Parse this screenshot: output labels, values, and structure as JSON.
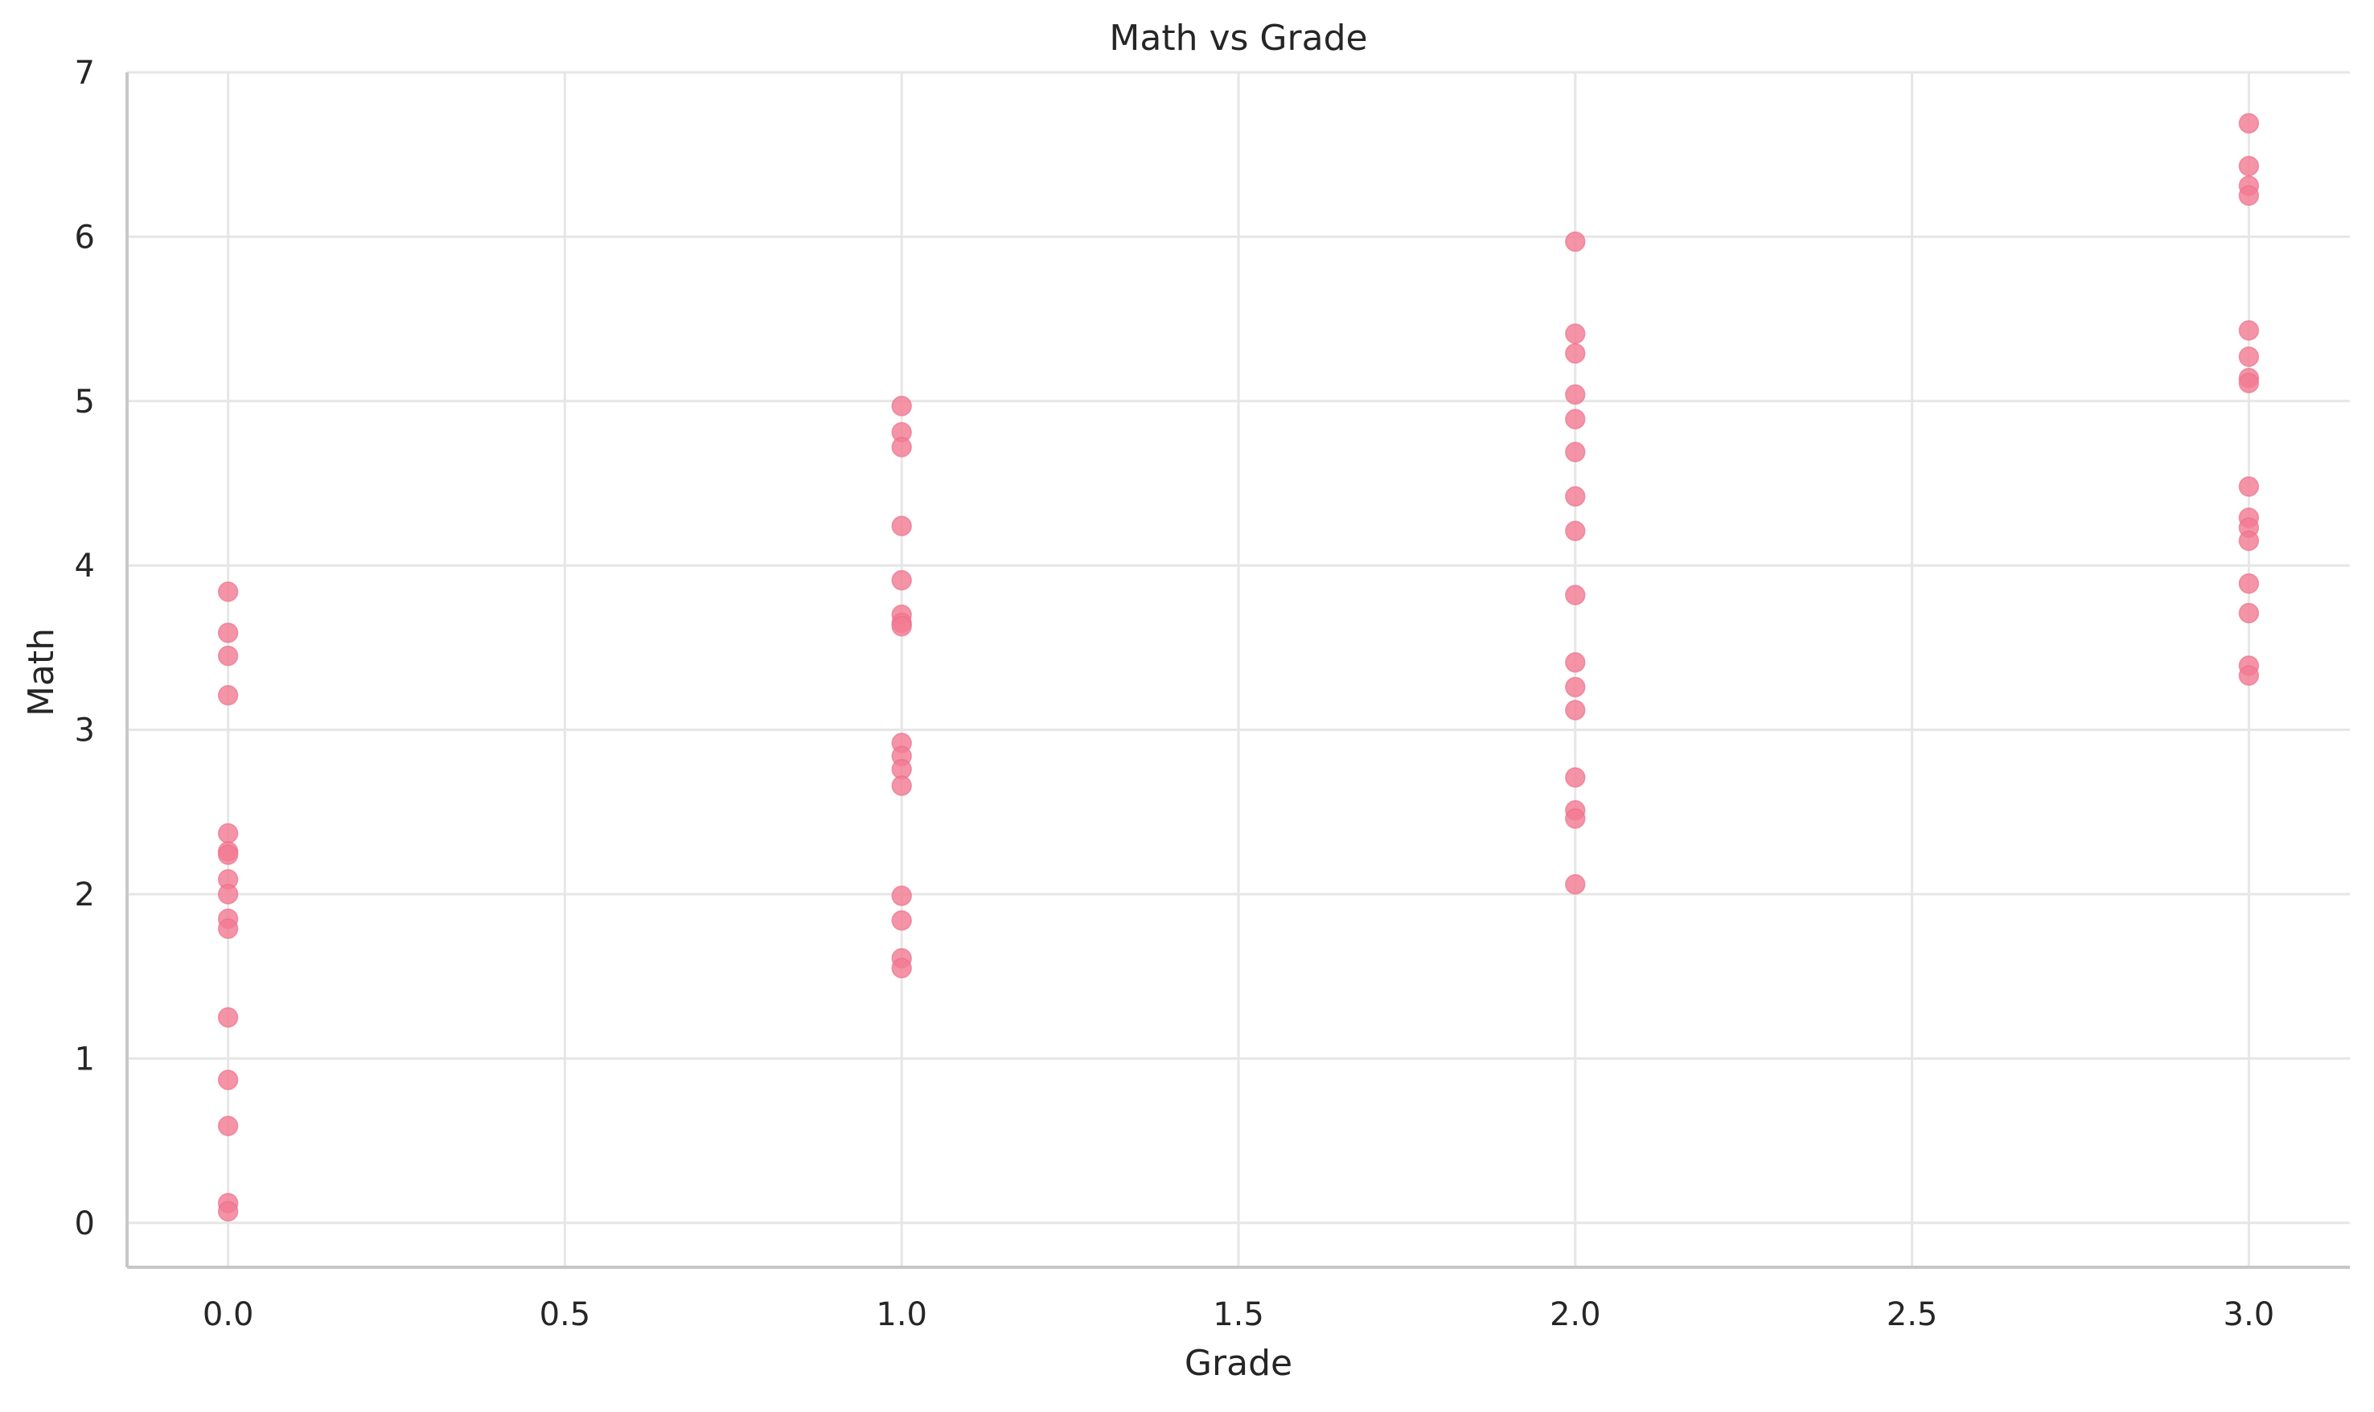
{
  "chart_data": {
    "type": "scatter",
    "title": "Math vs Grade",
    "xlabel": "Grade",
    "ylabel": "Math",
    "xlim": [
      -0.15,
      3.15
    ],
    "ylim": [
      -0.27,
      7.0
    ],
    "xticks": [
      0.0,
      0.5,
      1.0,
      1.5,
      2.0,
      2.5,
      3.0
    ],
    "xtick_labels": [
      "0.0",
      "0.5",
      "1.0",
      "1.5",
      "2.0",
      "2.5",
      "3.0"
    ],
    "yticks": [
      0,
      1,
      2,
      3,
      4,
      5,
      6,
      7
    ],
    "ytick_labels": [
      "0",
      "1",
      "2",
      "3",
      "4",
      "5",
      "6",
      "7"
    ],
    "grid": true,
    "marker_color": "#f37b94",
    "series": [
      {
        "points": [
          [
            0,
            3.84
          ],
          [
            0,
            3.59
          ],
          [
            0,
            3.45
          ],
          [
            0,
            3.21
          ],
          [
            0,
            2.37
          ],
          [
            0,
            2.26
          ],
          [
            0,
            2.24
          ],
          [
            0,
            2.09
          ],
          [
            0,
            2.0
          ],
          [
            0,
            1.85
          ],
          [
            0,
            1.79
          ],
          [
            0,
            1.25
          ],
          [
            0,
            0.87
          ],
          [
            0,
            0.59
          ],
          [
            0,
            0.12
          ],
          [
            0,
            0.07
          ],
          [
            1,
            4.97
          ],
          [
            1,
            4.81
          ],
          [
            1,
            4.72
          ],
          [
            1,
            4.24
          ],
          [
            1,
            3.91
          ],
          [
            1,
            3.7
          ],
          [
            1,
            3.65
          ],
          [
            1,
            3.63
          ],
          [
            1,
            2.92
          ],
          [
            1,
            2.84
          ],
          [
            1,
            2.76
          ],
          [
            1,
            2.66
          ],
          [
            1,
            1.99
          ],
          [
            1,
            1.84
          ],
          [
            1,
            1.61
          ],
          [
            1,
            1.55
          ],
          [
            2,
            5.97
          ],
          [
            2,
            5.41
          ],
          [
            2,
            5.29
          ],
          [
            2,
            5.04
          ],
          [
            2,
            4.89
          ],
          [
            2,
            4.69
          ],
          [
            2,
            4.42
          ],
          [
            2,
            4.21
          ],
          [
            2,
            3.82
          ],
          [
            2,
            3.41
          ],
          [
            2,
            3.26
          ],
          [
            2,
            3.12
          ],
          [
            2,
            2.71
          ],
          [
            2,
            2.51
          ],
          [
            2,
            2.46
          ],
          [
            2,
            2.06
          ],
          [
            3,
            6.69
          ],
          [
            3,
            6.43
          ],
          [
            3,
            6.31
          ],
          [
            3,
            6.25
          ],
          [
            3,
            5.43
          ],
          [
            3,
            5.27
          ],
          [
            3,
            5.14
          ],
          [
            3,
            5.11
          ],
          [
            3,
            4.48
          ],
          [
            3,
            4.29
          ],
          [
            3,
            4.23
          ],
          [
            3,
            4.15
          ],
          [
            3,
            3.89
          ],
          [
            3,
            3.71
          ],
          [
            3,
            3.39
          ],
          [
            3,
            3.33
          ]
        ]
      }
    ]
  }
}
